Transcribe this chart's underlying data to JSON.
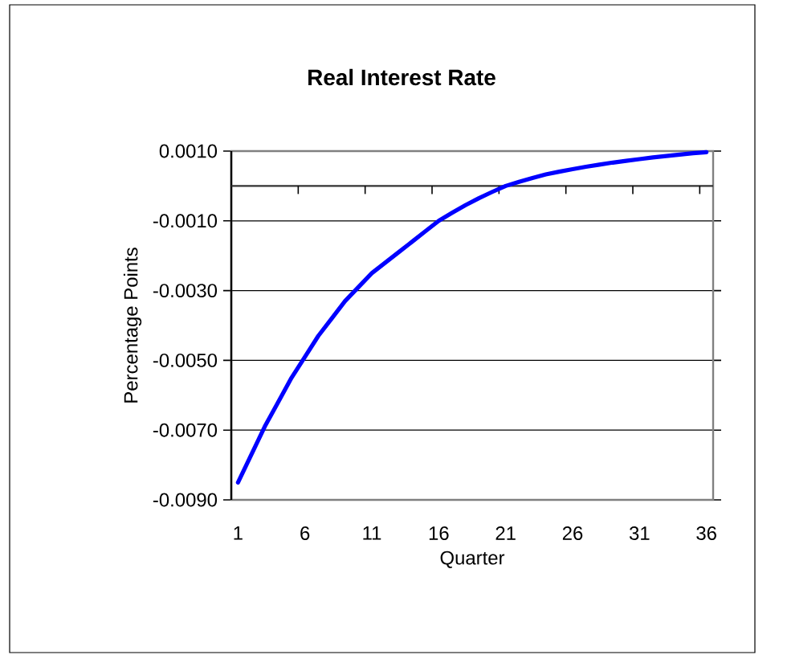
{
  "chart_data": {
    "type": "line",
    "title": "Real Interest Rate",
    "xlabel": "Quarter",
    "ylabel": "Percentage Points",
    "categories": [
      "1",
      null,
      null,
      null,
      null,
      "6",
      null,
      null,
      null,
      null,
      "11",
      null,
      null,
      null,
      null,
      "16",
      null,
      null,
      null,
      null,
      "21",
      null,
      null,
      null,
      null,
      "26",
      null,
      null,
      null,
      null,
      "31",
      null,
      null,
      null,
      null,
      "36"
    ],
    "series": [
      {
        "color": "#0000ff",
        "values": [
          -0.0085,
          -0.0077,
          -0.0069,
          -0.0062,
          -0.0055,
          -0.0049,
          -0.0043,
          -0.0038,
          -0.0033,
          -0.0029,
          -0.0025,
          -0.0022,
          -0.0019,
          -0.0016,
          -0.0013,
          -0.001,
          -0.00077,
          -0.00055,
          -0.00035,
          -0.00017,
          0.0,
          0.00012,
          0.00023,
          0.00033,
          0.00041,
          0.00048,
          0.00055,
          0.00061,
          0.00067,
          0.00072,
          0.00077,
          0.00082,
          0.00086,
          0.0009,
          0.00094,
          0.00097
        ]
      }
    ],
    "ylim": [
      -0.009,
      0.001
    ],
    "yticks": [
      {
        "value": -0.009,
        "label": "-0.0090"
      },
      {
        "value": -0.007,
        "label": "-0.0070"
      },
      {
        "value": -0.005,
        "label": "-0.0050"
      },
      {
        "value": -0.003,
        "label": "-0.0030"
      },
      {
        "value": -0.001,
        "label": "-0.0010"
      },
      {
        "value": 0.001,
        "label": "0.0010"
      }
    ],
    "grid": "y",
    "marker": "none",
    "line_style": "solid"
  }
}
